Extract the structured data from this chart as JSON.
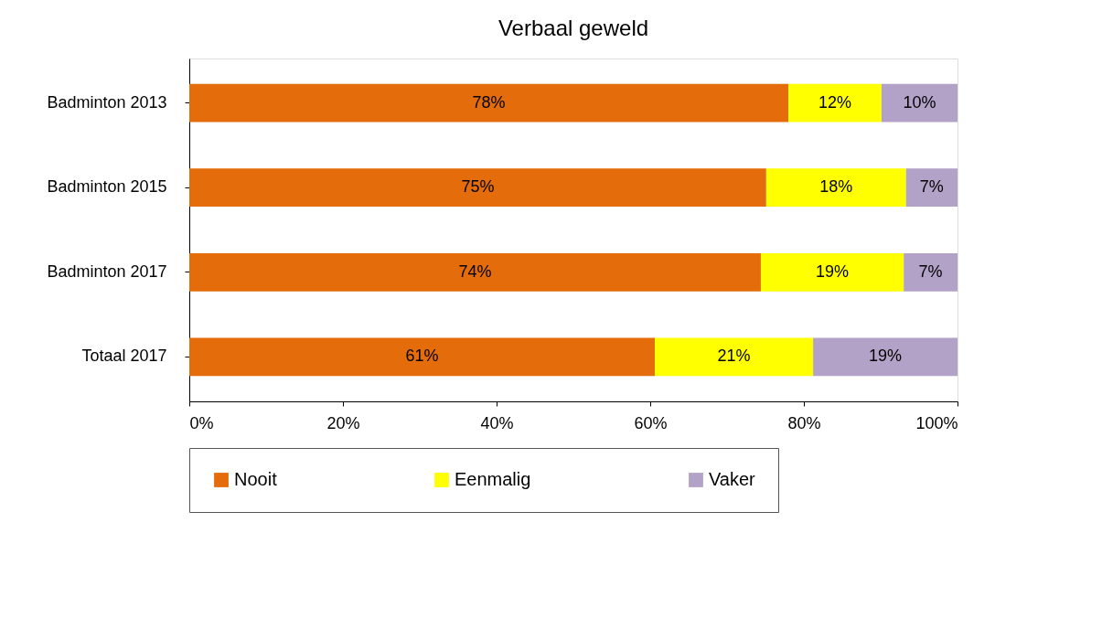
{
  "chart_data": {
    "type": "bar",
    "orientation": "horizontal",
    "stacked": true,
    "title": "Verbaal geweld",
    "categories": [
      "Badminton 2013",
      "Badminton 2015",
      "Badminton 2017",
      "Totaal 2017"
    ],
    "series": [
      {
        "name": "Nooit",
        "color": "#e46c0a",
        "values": [
          78.0,
          75.1,
          74.4,
          60.6
        ],
        "value_labels": [
          "78%",
          "75%",
          "74%",
          "61%"
        ]
      },
      {
        "name": "Eenmalig",
        "color": "#ffff00",
        "values": [
          12.1,
          18.2,
          18.6,
          20.6
        ],
        "value_labels": [
          "12%",
          "18%",
          "19%",
          "21%"
        ]
      },
      {
        "name": "Vaker",
        "color": "#b3a2c7",
        "values": [
          9.9,
          6.7,
          7.0,
          18.8
        ],
        "value_labels": [
          "10%",
          "7%",
          "7%",
          "19%"
        ]
      }
    ],
    "xlim": [
      0,
      100
    ],
    "xticks": [
      {
        "value": 0,
        "label": "0%"
      },
      {
        "value": 20,
        "label": "20%"
      },
      {
        "value": 40,
        "label": "40%"
      },
      {
        "value": 60,
        "label": "60%"
      },
      {
        "value": 80,
        "label": "80%"
      },
      {
        "value": 100,
        "label": "100%"
      }
    ],
    "grid": false,
    "legend": "bottom"
  }
}
